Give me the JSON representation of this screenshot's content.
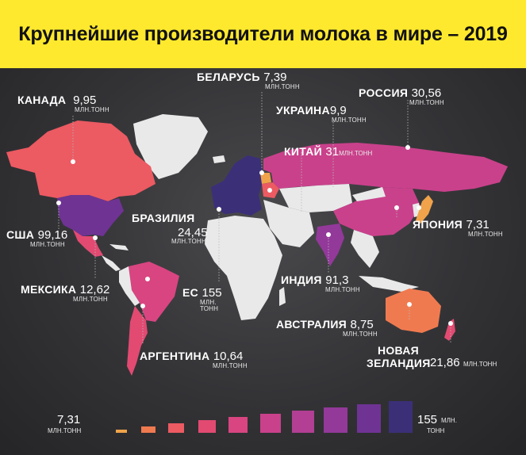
{
  "title": "Крупнейшие производители молока в мире – 2019",
  "colors": {
    "title_bg": "#ffe92e",
    "background": "#2b2b2d",
    "land_other": "#e9e9ea",
    "scale": [
      "#f0a34a",
      "#f07a4f",
      "#ec5a62",
      "#e24a72",
      "#d84581",
      "#c9418b",
      "#b23f93",
      "#93399a",
      "#6f3394",
      "#3b2f78"
    ]
  },
  "countries": [
    {
      "name": "КАНАДА",
      "value": "9,95",
      "unit": "МЛН.ТОНН"
    },
    {
      "name": "БЕЛАРУСЬ",
      "value": "7,39",
      "unit": "МЛН.ТОНН"
    },
    {
      "name": "РОССИЯ",
      "value": "30,56",
      "unit": "МЛН.ТОНН"
    },
    {
      "name": "УКРАИНА",
      "value": "9,9",
      "unit": "МЛН.ТОНН"
    },
    {
      "name": "КИТАЙ",
      "value": "31",
      "unit": "МЛН.ТОНН"
    },
    {
      "name": "БРАЗИЛИЯ",
      "value": "24,45",
      "unit": "МЛН.ТОНН"
    },
    {
      "name": "ЯПОНИЯ",
      "value": "7,31",
      "unit": "МЛН.ТОНН"
    },
    {
      "name": "США",
      "value": "99,16",
      "unit": "МЛН.ТОНН"
    },
    {
      "name": "МЕКСИКА",
      "value": "12,62",
      "unit": "МЛН.ТОНН"
    },
    {
      "name": "ЕС",
      "value": "155",
      "unit": "МЛН. ТОНН"
    },
    {
      "name": "ИНДИЯ",
      "value": "91,3",
      "unit": "МЛН.ТОНН"
    },
    {
      "name": "АВСТРАЛИЯ",
      "value": "8,75",
      "unit": "МЛН.ТОНН"
    },
    {
      "name": "АРГЕНТИНА",
      "value": "10,64",
      "unit": "МЛН.ТОНН"
    },
    {
      "name": "НОВАЯ ЗЕЛАНДИЯ",
      "value": "21,86",
      "unit": "МЛН.ТОНН"
    }
  ],
  "legend": {
    "min_value": "7,31",
    "min_unit": "МЛН.ТОНН",
    "max_value": "155",
    "max_unit_1": "МЛН.",
    "max_unit_2": "ТОНН"
  }
}
